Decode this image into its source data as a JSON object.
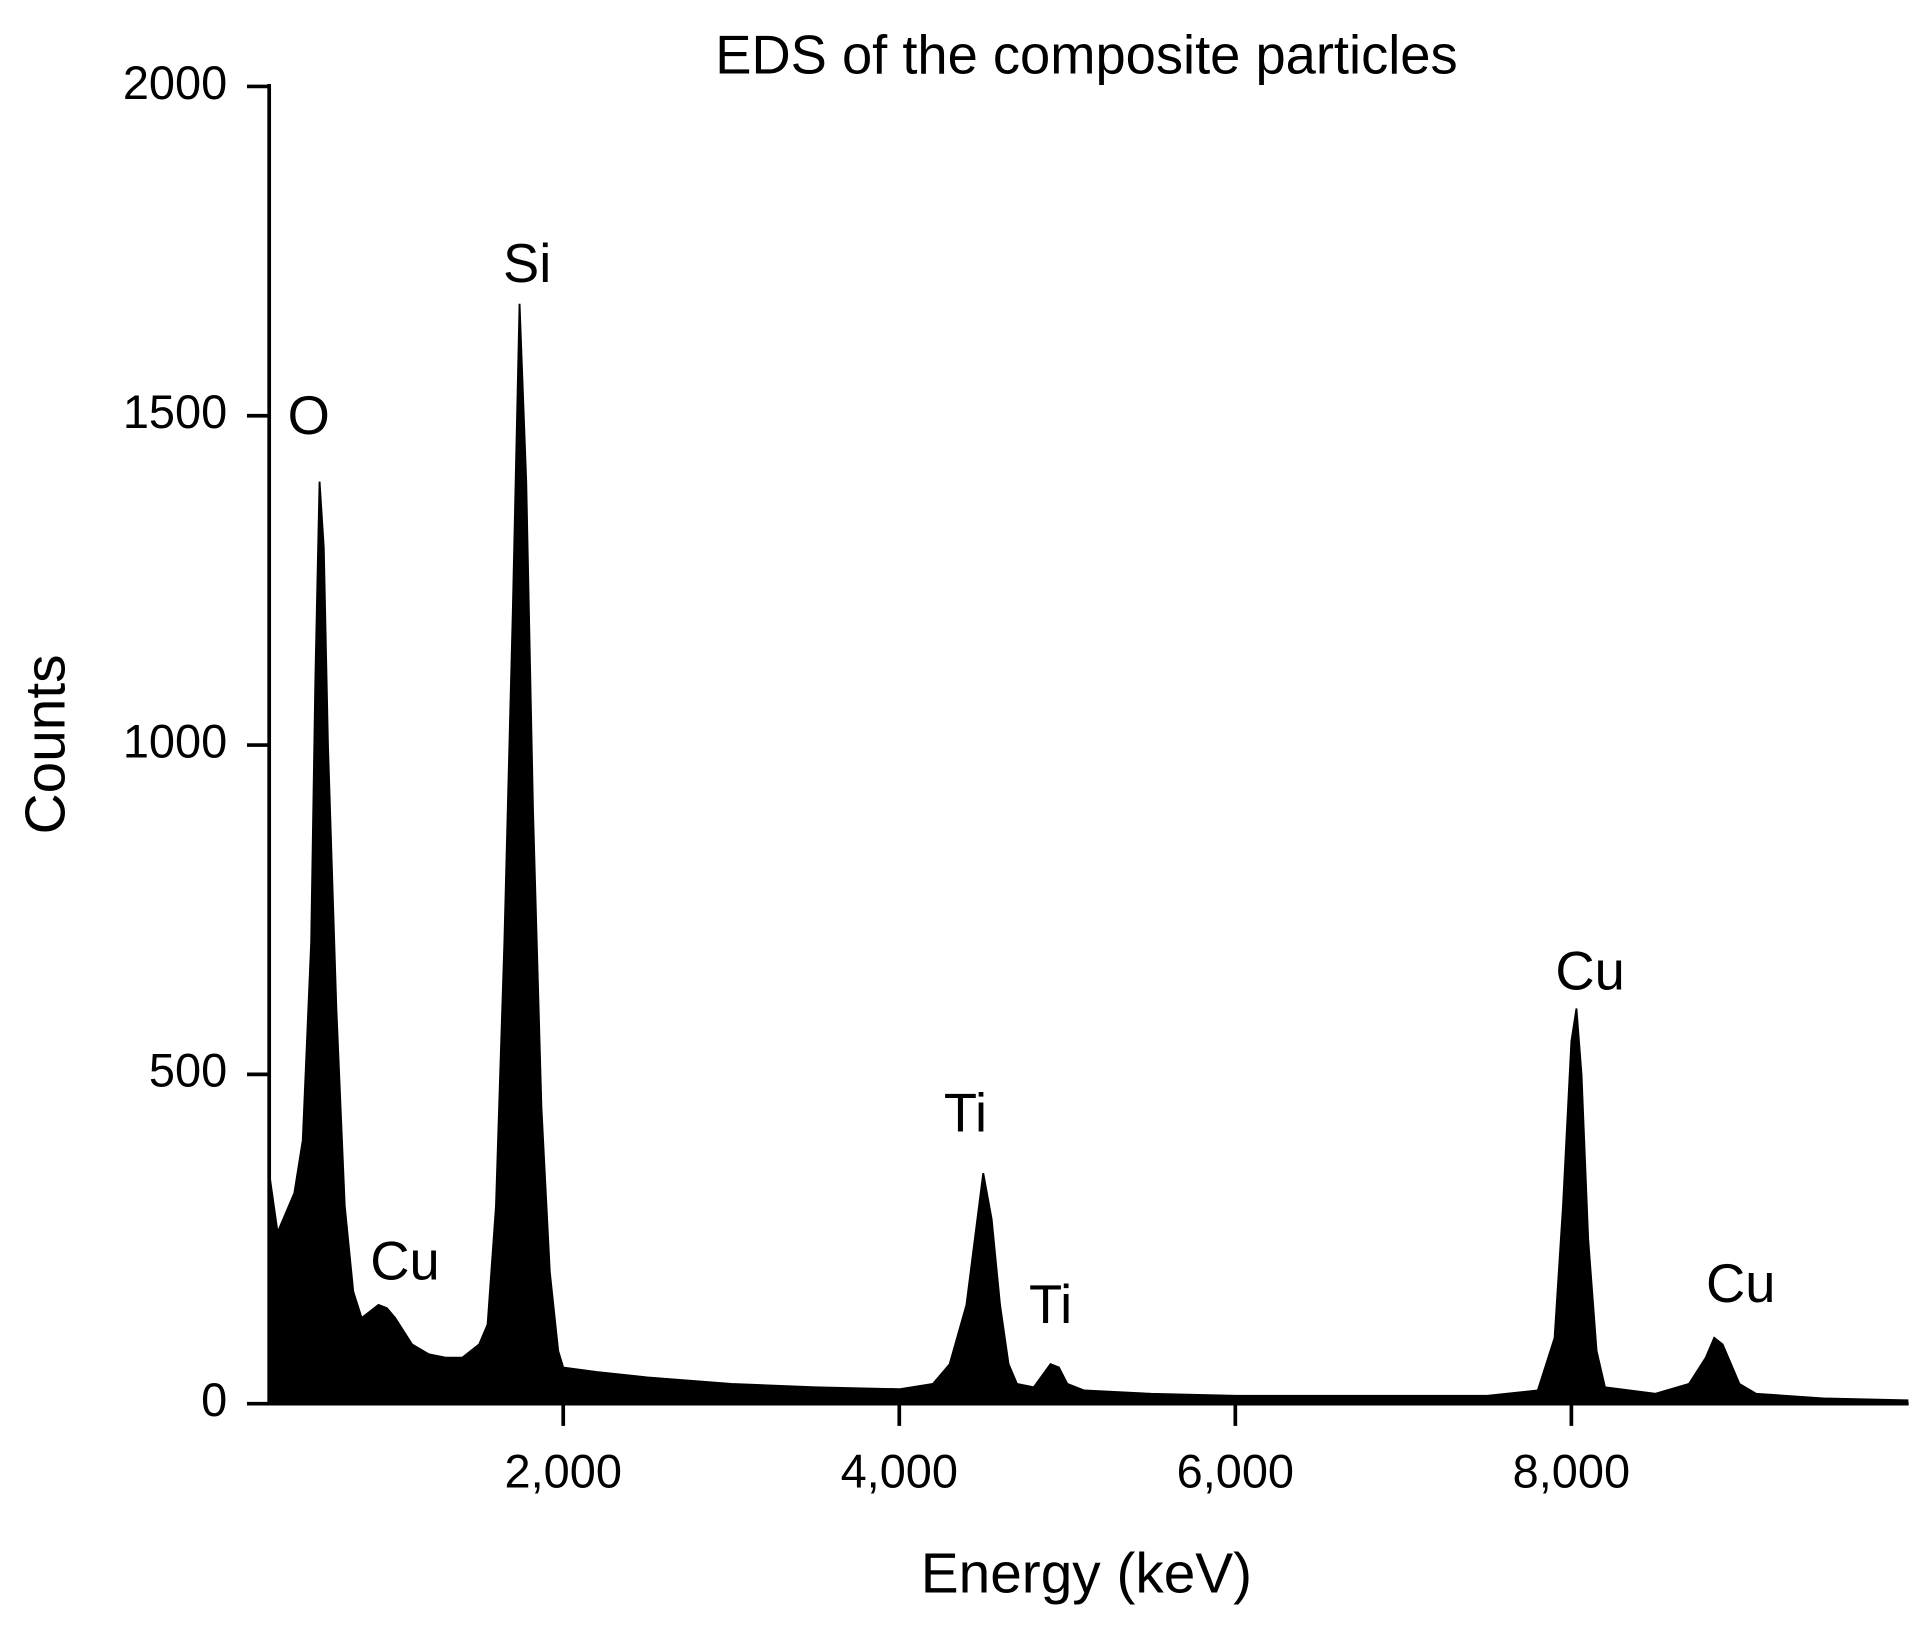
{
  "chart_data": {
    "type": "area",
    "title": "EDS of the composite particles",
    "x_label": "Energy (keV)",
    "y_label": "Counts",
    "x": [
      250,
      300,
      350,
      400,
      450,
      500,
      525,
      550,
      575,
      600,
      650,
      700,
      750,
      800,
      850,
      900,
      950,
      1000,
      1050,
      1100,
      1200,
      1300,
      1400,
      1500,
      1550,
      1600,
      1650,
      1700,
      1740,
      1780,
      1820,
      1870,
      1920,
      1970,
      2000,
      2200,
      2500,
      3000,
      3500,
      4000,
      4200,
      4300,
      4400,
      4450,
      4500,
      4550,
      4600,
      4650,
      4700,
      4800,
      4900,
      4950,
      5000,
      5100,
      5500,
      6000,
      7000,
      7500,
      7800,
      7900,
      7950,
      8000,
      8030,
      8060,
      8100,
      8150,
      8200,
      8500,
      8700,
      8800,
      8850,
      8900,
      8950,
      9000,
      9100,
      9500,
      10000
    ],
    "values": [
      350,
      260,
      290,
      320,
      400,
      700,
      1100,
      1400,
      1300,
      1000,
      600,
      300,
      170,
      130,
      140,
      150,
      145,
      130,
      110,
      90,
      75,
      70,
      70,
      90,
      120,
      300,
      700,
      1200,
      1670,
      1400,
      900,
      450,
      200,
      80,
      55,
      48,
      40,
      30,
      25,
      22,
      30,
      60,
      150,
      250,
      350,
      280,
      150,
      60,
      30,
      25,
      60,
      55,
      30,
      20,
      15,
      12,
      12,
      12,
      20,
      100,
      300,
      550,
      600,
      500,
      250,
      80,
      25,
      15,
      30,
      70,
      100,
      90,
      60,
      30,
      15,
      8,
      5
    ],
    "color": "#000000",
    "annotations": [
      "O",
      "Si",
      "Cu",
      "Ti",
      "Ti",
      "Cu",
      "Cu"
    ],
    "xlim": [
      250,
      10000
    ],
    "xticks": [
      {
        "value": 2000,
        "label": "2,000"
      },
      {
        "value": 4000,
        "label": "4,000"
      },
      {
        "value": 6000,
        "label": "6,000"
      },
      {
        "value": 8000,
        "label": "8,000"
      }
    ],
    "ylim": [
      0,
      2000
    ],
    "yticks": [
      0,
      500,
      1000,
      1500,
      2000
    ],
    "grid": false
  }
}
